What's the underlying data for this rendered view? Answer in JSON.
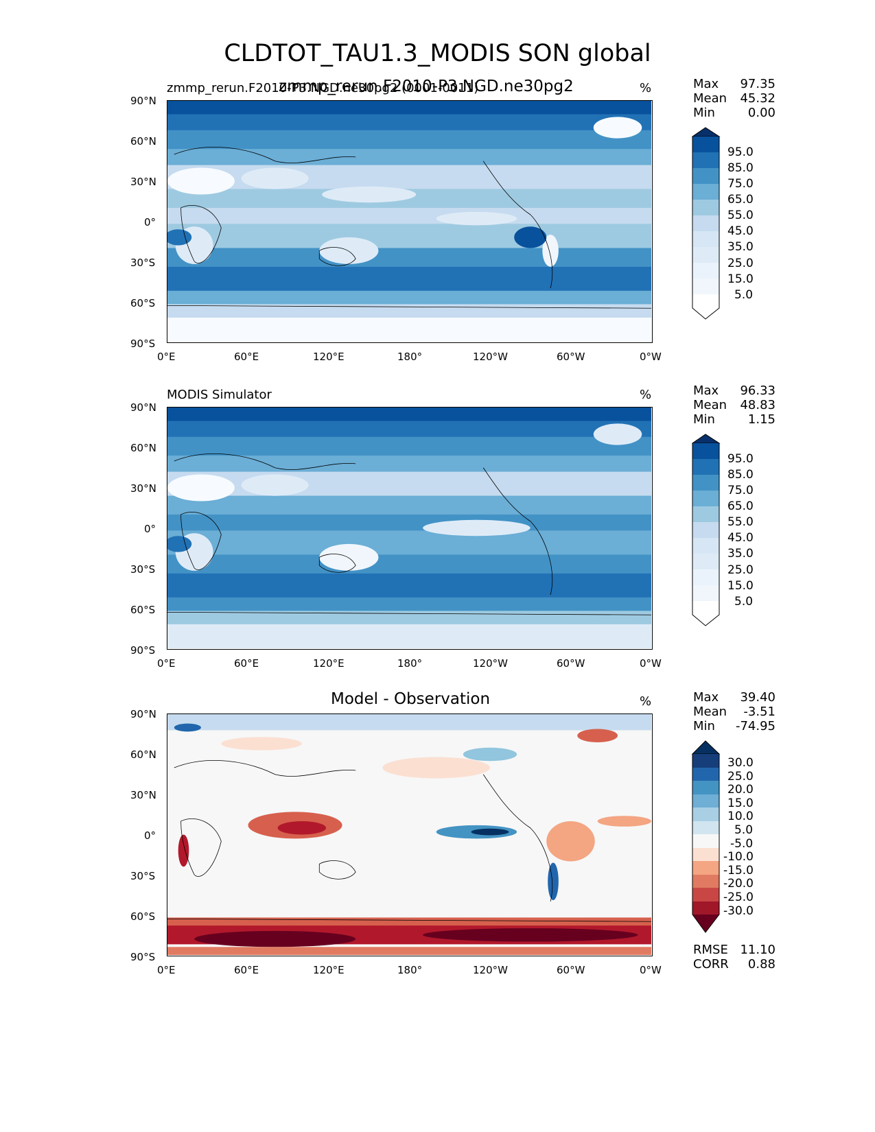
{
  "figure": {
    "title": "CLDTOT_TAU1.3_MODIS SON global"
  },
  "chart_data": [
    {
      "type": "heatmap",
      "title_left": "zmmp_rerun.F2010-P3.NGD.ne30pg2 (0001-0011)",
      "title_center": "zmmp_rerun.F2010-P3.NGD.ne30pg2",
      "unit": "%",
      "stats": [
        {
          "label": "Max",
          "value": "97.35"
        },
        {
          "label": "Mean",
          "value": "45.32"
        },
        {
          "label": "Min",
          "value": "0.00"
        }
      ],
      "x_ticks": [
        "0°E",
        "60°E",
        "120°E",
        "180°",
        "120°W",
        "60°W",
        "0°W"
      ],
      "y_ticks": [
        "90°N",
        "60°N",
        "30°N",
        "0°",
        "30°S",
        "60°S",
        "90°S"
      ],
      "xlim": [
        0,
        360
      ],
      "ylim": [
        -90,
        90
      ],
      "colorbar": {
        "labels": [
          "95.0",
          "85.0",
          "75.0",
          "65.0",
          "55.0",
          "45.0",
          "35.0",
          "25.0",
          "15.0",
          "5.0"
        ],
        "colors": [
          "#08306b",
          "#08519c",
          "#2171b5",
          "#4292c6",
          "#6baed6",
          "#9ecae1",
          "#c6dbef",
          "#deebf7",
          "#f0f6fc",
          "#f7fbff"
        ]
      }
    },
    {
      "type": "heatmap",
      "title_left": "MODIS Simulator",
      "unit": "%",
      "stats": [
        {
          "label": "Max",
          "value": "96.33"
        },
        {
          "label": "Mean",
          "value": "48.83"
        },
        {
          "label": "Min",
          "value": "1.15"
        }
      ],
      "x_ticks": [
        "0°E",
        "60°E",
        "120°E",
        "180°",
        "120°W",
        "60°W",
        "0°W"
      ],
      "y_ticks": [
        "90°N",
        "60°N",
        "30°N",
        "0°",
        "30°S",
        "60°S",
        "90°S"
      ],
      "xlim": [
        0,
        360
      ],
      "ylim": [
        -90,
        90
      ],
      "colorbar": {
        "labels": [
          "95.0",
          "85.0",
          "75.0",
          "65.0",
          "55.0",
          "45.0",
          "35.0",
          "25.0",
          "15.0",
          "5.0"
        ],
        "colors": [
          "#08306b",
          "#08519c",
          "#2171b5",
          "#4292c6",
          "#6baed6",
          "#9ecae1",
          "#c6dbef",
          "#deebf7",
          "#f0f6fc",
          "#f7fbff"
        ]
      }
    },
    {
      "type": "heatmap",
      "title_center": "Model - Observation",
      "unit": "%",
      "stats": [
        {
          "label": "Max",
          "value": "39.40"
        },
        {
          "label": "Mean",
          "value": "-3.51"
        },
        {
          "label": "Min",
          "value": "-74.95"
        }
      ],
      "x_ticks": [
        "0°E",
        "60°E",
        "120°E",
        "180°",
        "120°W",
        "60°W",
        "0°W"
      ],
      "y_ticks": [
        "90°N",
        "60°N",
        "30°N",
        "0°",
        "30°S",
        "60°S",
        "90°S"
      ],
      "xlim": [
        0,
        360
      ],
      "ylim": [
        -90,
        90
      ],
      "colorbar": {
        "labels": [
          "30.0",
          "25.0",
          "20.0",
          "15.0",
          "10.0",
          "5.0",
          "-5.0",
          "-10.0",
          "-15.0",
          "-20.0",
          "-25.0",
          "-30.0"
        ],
        "colors": [
          "#053061",
          "#2166ac",
          "#4393c3",
          "#92c5de",
          "#c6dbef",
          "#e5eff6",
          "#f7f7f7",
          "#fbe0d2",
          "#f4a582",
          "#e07b62",
          "#d6604d",
          "#b2182b",
          "#67001f"
        ]
      },
      "metrics": [
        {
          "label": "RMSE",
          "value": "11.10"
        },
        {
          "label": "CORR",
          "value": "0.88"
        }
      ]
    }
  ]
}
